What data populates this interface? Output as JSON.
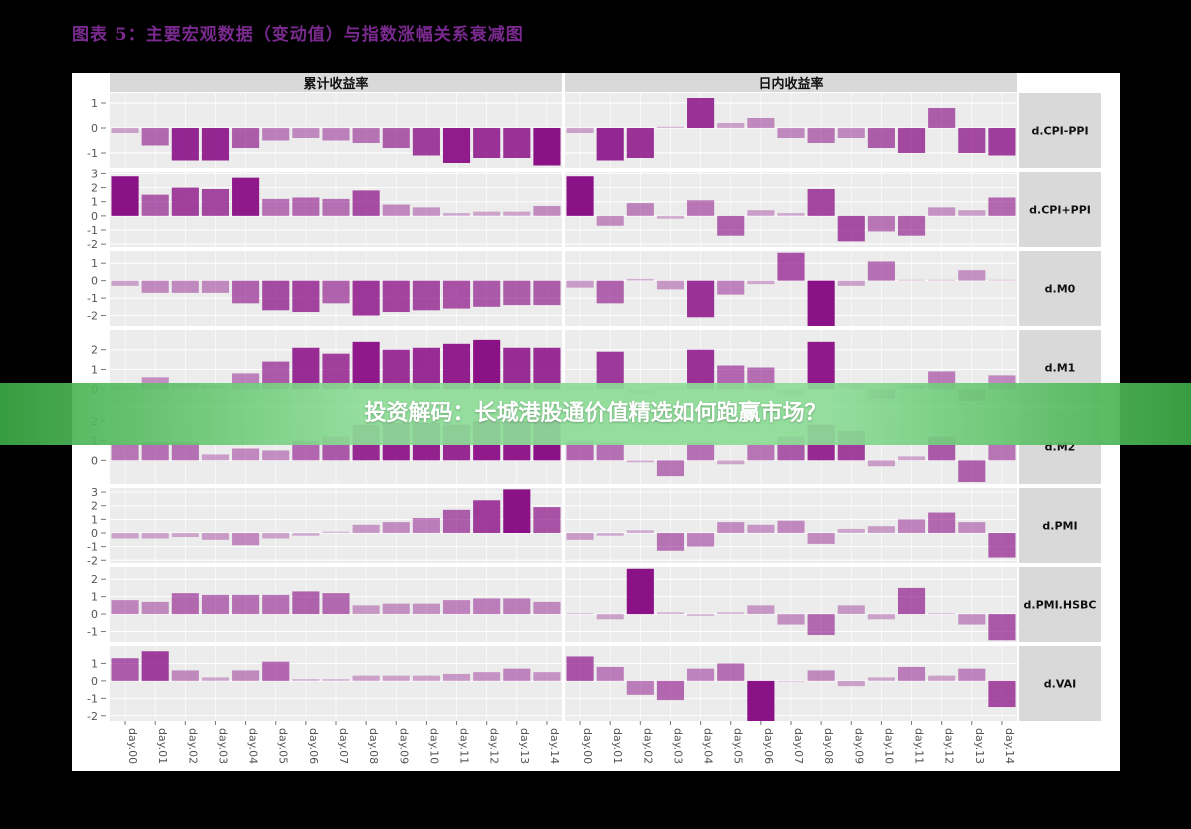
{
  "figure_title": "图表 5：主要宏观数据（变动值）与指数涨幅关系衰减图",
  "banner": "投资解码：长城港股通价值精选如何跑赢市场？",
  "colors": {
    "bar_dark": "#8b1187",
    "bar_light": "#e2c4e2",
    "strip": "#d9d9d9",
    "panel": "#ececec",
    "grid": "#ffffff"
  },
  "chart_data": {
    "type": "bar",
    "layout": "facet_grid",
    "columns": [
      "累计收益率",
      "日内收益率"
    ],
    "rows": [
      "d.CPI-PPI",
      "d.CPI+PPI",
      "d.M0",
      "d.M1",
      "d.M2",
      "d.PMI",
      "d.PMI.HSBC",
      "d.VAI"
    ],
    "categories": [
      "day.00",
      "day.01",
      "day.02",
      "day.03",
      "day.04",
      "day.05",
      "day.06",
      "day.07",
      "day.08",
      "day.09",
      "day.10",
      "day.11",
      "day.12",
      "day.13",
      "day.14"
    ],
    "panels": [
      {
        "row": "d.CPI-PPI",
        "yticks": [
          1,
          0,
          -1
        ],
        "ylim": [
          -1.6,
          1.4
        ],
        "cumulative": [
          -0.2,
          -0.7,
          -1.3,
          -1.3,
          -0.8,
          -0.5,
          -0.4,
          -0.5,
          -0.6,
          -0.8,
          -1.1,
          -1.4,
          -1.2,
          -1.2,
          -1.5
        ],
        "intraday": [
          -0.2,
          -1.3,
          -1.2,
          0.05,
          1.2,
          0.2,
          0.4,
          -0.4,
          -0.6,
          -0.4,
          -0.8,
          -1.0,
          0.8,
          -1.0,
          -1.1
        ]
      },
      {
        "row": "d.CPI+PPI",
        "yticks": [
          3,
          2,
          1,
          0,
          -1,
          -2
        ],
        "ylim": [
          -2.2,
          3.1
        ],
        "cumulative": [
          2.8,
          1.5,
          2.0,
          1.9,
          2.7,
          1.2,
          1.3,
          1.2,
          1.8,
          0.8,
          0.6,
          0.2,
          0.3,
          0.3,
          0.7
        ],
        "intraday": [
          2.8,
          -0.7,
          0.9,
          -0.2,
          1.1,
          -1.4,
          0.4,
          0.2,
          1.9,
          -1.8,
          -1.1,
          -1.4,
          0.6,
          0.4,
          1.3
        ]
      },
      {
        "row": "d.M0",
        "yticks": [
          1,
          0,
          -1,
          -2
        ],
        "ylim": [
          -2.6,
          1.7
        ],
        "cumulative": [
          -0.3,
          -0.7,
          -0.7,
          -0.7,
          -1.3,
          -1.7,
          -1.8,
          -1.3,
          -2.0,
          -1.8,
          -1.7,
          -1.6,
          -1.5,
          -1.4,
          -1.4
        ],
        "intraday": [
          -0.4,
          -1.3,
          0.1,
          -0.5,
          -2.1,
          -0.8,
          -0.2,
          1.6,
          -2.6,
          -0.3,
          1.1,
          0.05,
          0.05,
          0.6,
          0.05
        ]
      },
      {
        "row": "d.M1",
        "yticks": [
          2,
          1,
          0
        ],
        "ylim": [
          -0.8,
          3.0
        ],
        "cumulative": [
          0.1,
          0.6,
          0.3,
          0.2,
          0.8,
          1.4,
          2.1,
          1.8,
          2.4,
          2.0,
          2.1,
          2.3,
          2.5,
          2.1,
          2.1
        ],
        "intraday": [
          0.1,
          1.9,
          -0.2,
          0.1,
          2.0,
          1.2,
          1.1,
          -0.3,
          2.4,
          0.3,
          -0.5,
          0.2,
          0.9,
          -0.6,
          0.7
        ]
      },
      {
        "row": "d.M2",
        "yticks": [
          2,
          1,
          0
        ],
        "ylim": [
          -1.2,
          2.6
        ],
        "cumulative": [
          0.8,
          0.9,
          0.9,
          0.3,
          0.6,
          0.5,
          1.0,
          1.2,
          1.8,
          1.9,
          1.9,
          1.8,
          2.0,
          2.0,
          2.1
        ],
        "intraday": [
          1.0,
          0.9,
          -0.1,
          -0.8,
          0.9,
          -0.2,
          0.8,
          1.2,
          1.8,
          1.5,
          -0.3,
          0.2,
          1.2,
          -1.1,
          0.8
        ]
      },
      {
        "row": "d.PMI",
        "yticks": [
          3,
          2,
          1,
          0,
          -1,
          -2
        ],
        "ylim": [
          -2.2,
          3.3
        ],
        "cumulative": [
          -0.4,
          -0.4,
          -0.3,
          -0.5,
          -0.9,
          -0.4,
          -0.2,
          0.1,
          0.6,
          0.8,
          1.1,
          1.7,
          2.4,
          3.2,
          1.9
        ],
        "intraday": [
          -0.5,
          -0.2,
          0.2,
          -1.3,
          -1.0,
          0.8,
          0.6,
          0.9,
          -0.8,
          0.3,
          0.5,
          1.0,
          1.5,
          0.8,
          -1.8
        ]
      },
      {
        "row": "d.PMI.HSBC",
        "yticks": [
          2,
          1,
          0,
          -1
        ],
        "ylim": [
          -1.6,
          2.7
        ],
        "cumulative": [
          0.8,
          0.7,
          1.2,
          1.1,
          1.1,
          1.1,
          1.3,
          1.2,
          0.5,
          0.6,
          0.6,
          0.8,
          0.9,
          0.9,
          0.7
        ],
        "intraday": [
          0.05,
          -0.3,
          2.6,
          0.1,
          -0.1,
          0.1,
          0.5,
          -0.6,
          -1.2,
          0.5,
          -0.3,
          1.5,
          0.05,
          -0.6,
          -1.5
        ]
      },
      {
        "row": "d.VAI",
        "yticks": [
          1,
          0,
          -1,
          -2
        ],
        "ylim": [
          -2.3,
          2.0
        ],
        "cumulative": [
          1.3,
          1.7,
          0.6,
          0.2,
          0.6,
          1.1,
          0.1,
          0.1,
          0.3,
          0.3,
          0.3,
          0.4,
          0.5,
          0.7,
          0.5
        ],
        "intraday": [
          1.4,
          0.8,
          -0.8,
          -1.1,
          0.7,
          1.0,
          -2.3,
          0.0,
          0.6,
          -0.3,
          0.2,
          0.8,
          0.3,
          0.7,
          -1.5
        ]
      }
    ]
  }
}
